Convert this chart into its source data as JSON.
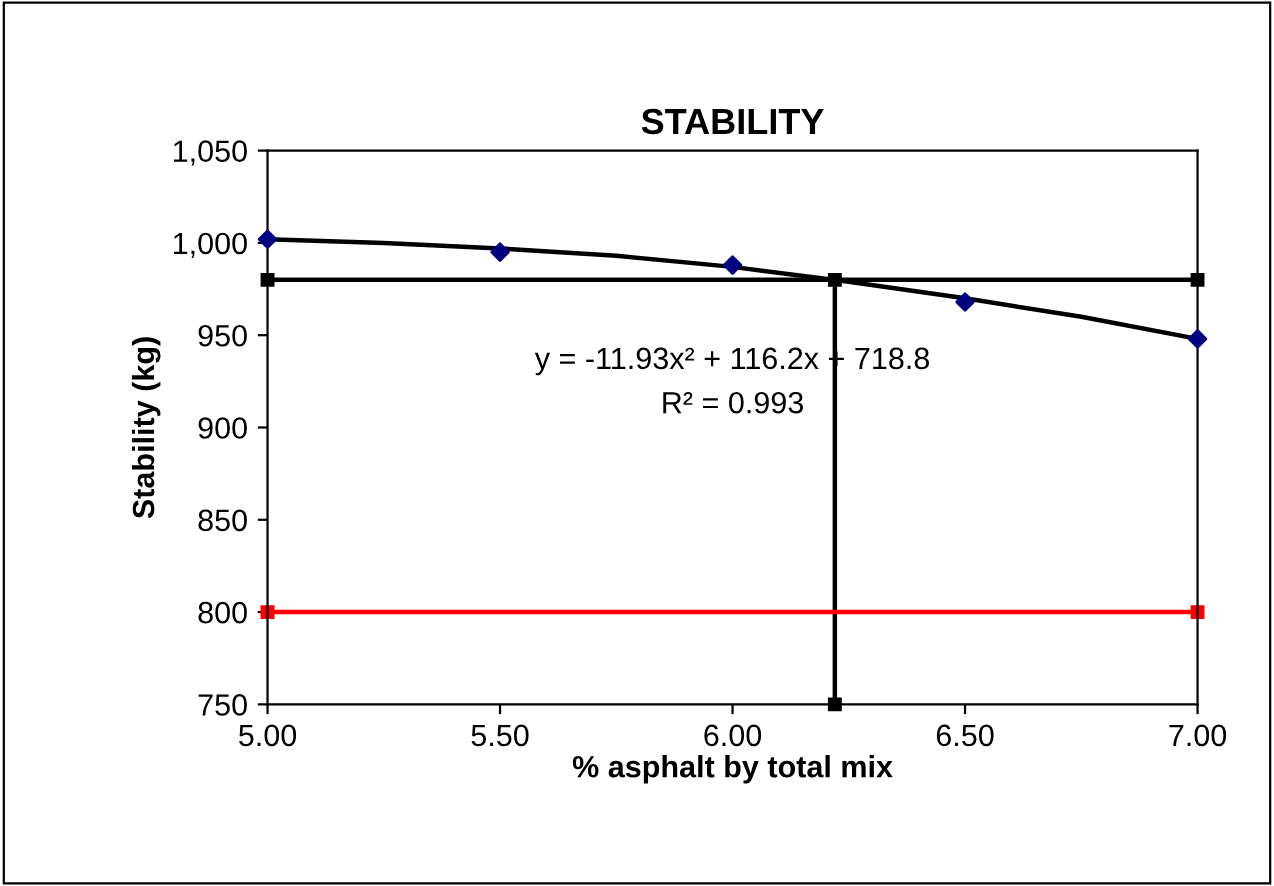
{
  "chart_data": {
    "type": "line",
    "title": "STABILITY",
    "xlabel": "% asphalt by total mix",
    "ylabel": "Stability (kg)",
    "xlim": [
      5.0,
      7.0
    ],
    "ylim": [
      750,
      1050
    ],
    "xticks": [
      {
        "value": 5.0,
        "label": "5.00"
      },
      {
        "value": 5.5,
        "label": "5.50"
      },
      {
        "value": 6.0,
        "label": "6.00"
      },
      {
        "value": 6.5,
        "label": "6.50"
      },
      {
        "value": 7.0,
        "label": "7.00"
      }
    ],
    "yticks": [
      750,
      800,
      850,
      900,
      950,
      {
        "value": 1000,
        "label": "1,000"
      },
      {
        "value": 1050,
        "label": "1,050"
      }
    ],
    "grid": false,
    "legend": false,
    "series": [
      {
        "type": "scatter",
        "color": "#000080",
        "marker": "diamond",
        "x": [
          5.0,
          5.5,
          6.0,
          6.5,
          7.0
        ],
        "values": [
          1002,
          995,
          988,
          968,
          948
        ]
      },
      {
        "color": "#000000",
        "marker": "none",
        "x": [
          5.0,
          5.25,
          5.5,
          5.75,
          6.0,
          6.25,
          6.5,
          6.75,
          7.0
        ],
        "values": [
          1002,
          1000,
          997,
          993,
          987,
          979,
          970,
          960,
          948
        ]
      },
      {
        "color": "#000000",
        "marker": "square",
        "x": [
          5.0,
          7.0
        ],
        "values": [
          980,
          980
        ]
      },
      {
        "color": "#000000",
        "marker": "square",
        "x": [
          6.22,
          6.22
        ],
        "values": [
          750,
          980
        ]
      },
      {
        "color": "#ff0000",
        "marker": "square",
        "x": [
          5.0,
          7.0
        ],
        "values": [
          800,
          800
        ]
      }
    ],
    "annotations": [
      "y = -11.93x² + 116.2x + 718.8",
      "R² = 0.993"
    ]
  }
}
